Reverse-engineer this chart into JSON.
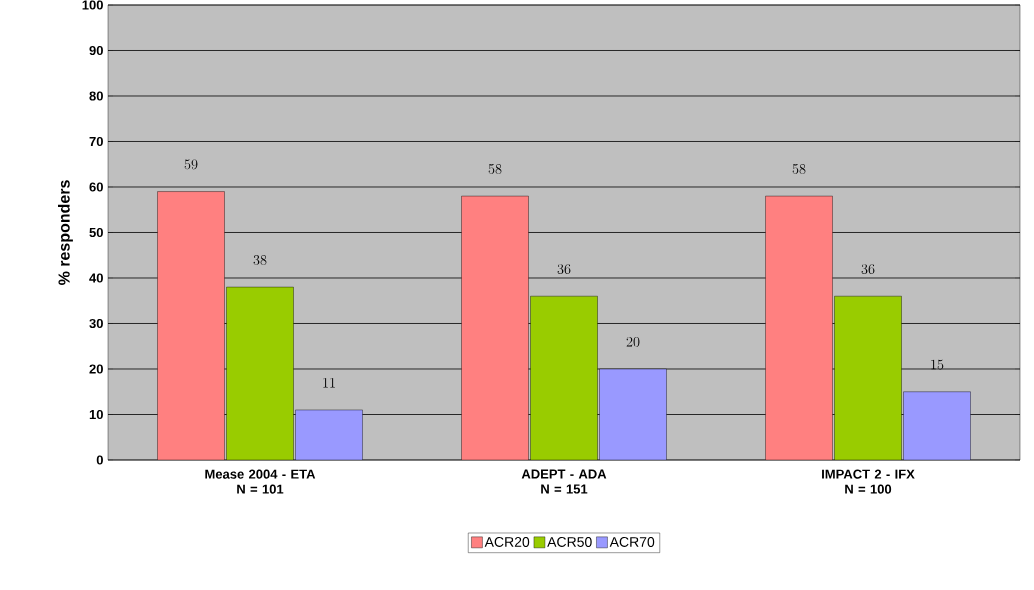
{
  "chart_data": {
    "type": "bar",
    "ylabel": "% responders",
    "categories": [
      "Mease 2004 - ETA\nN = 101",
      "ADEPT - ADA\nN = 151",
      "IMPACT 2 - IFX\nN = 100"
    ],
    "series": [
      {
        "name": "ACR20",
        "color": "#ff8080",
        "values": [
          59,
          58,
          58
        ]
      },
      {
        "name": "ACR50",
        "color": "#99cc00",
        "values": [
          38,
          36,
          36
        ]
      },
      {
        "name": "ACR70",
        "color": "#9999ff",
        "values": [
          11,
          20,
          15
        ]
      }
    ],
    "ylim": [
      0,
      100
    ],
    "yticks": [
      0,
      10,
      20,
      30,
      40,
      50,
      60,
      70,
      80,
      90,
      100
    ],
    "grid": "y",
    "legend": "bottom",
    "data_labels": true
  }
}
